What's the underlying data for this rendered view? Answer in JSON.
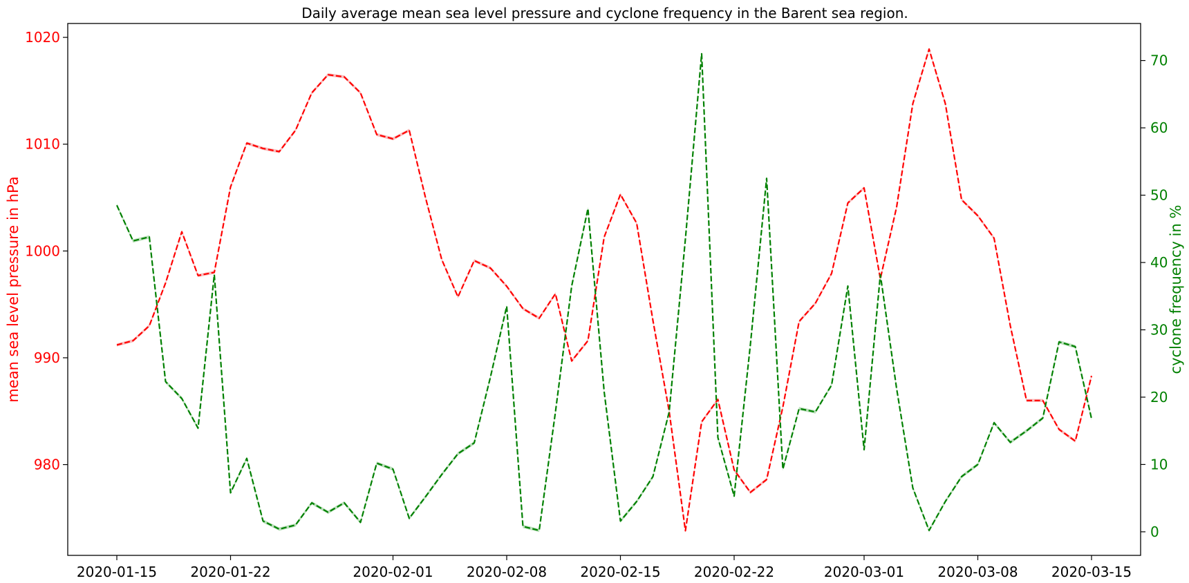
{
  "chart_data": {
    "type": "line",
    "title": "Daily average mean sea level pressure and cyclone frequency in the Barent sea region.",
    "xlabel": "",
    "x_ticks": [
      "2020-01-15",
      "2020-01-22",
      "2020-02-01",
      "2020-02-08",
      "2020-02-15",
      "2020-02-22",
      "2020-03-01",
      "2020-03-08",
      "2020-03-15"
    ],
    "y_left": {
      "label": "mean sea level pressure in hPa",
      "color": "#ff0000",
      "lim": [
        971.5,
        1021.3
      ],
      "ticks": [
        "980",
        "990",
        "1000",
        "1010",
        "1020"
      ]
    },
    "y_right": {
      "label": "cyclone frequency in %",
      "color": "#008000",
      "lim": [
        -3.5,
        75.5
      ],
      "ticks": [
        "0",
        "10",
        "20",
        "30",
        "40",
        "50",
        "60",
        "70"
      ]
    },
    "x_start": "2020-01-15",
    "x_end": "2020-03-15",
    "grid": false,
    "line_style": "dashed",
    "series": [
      {
        "axis": "left",
        "color": "#ff0000",
        "band_color": "#f7a8a8",
        "values": [
          991.2,
          991.6,
          993.0,
          997.0,
          1001.8,
          997.7,
          998.0,
          1006.0,
          1010.1,
          1009.6,
          1009.3,
          1011.3,
          1014.8,
          1016.5,
          1016.3,
          1014.8,
          1010.9,
          1010.5,
          1011.3,
          1005.0,
          999.2,
          995.7,
          999.1,
          998.4,
          996.7,
          994.6,
          993.7,
          996.0,
          989.7,
          991.6,
          1001.3,
          1005.3,
          1002.6,
          993.5,
          985.0,
          973.8,
          984.0,
          986.1,
          979.5,
          977.4,
          978.6,
          985.4,
          993.4,
          995.1,
          997.9,
          1004.5,
          1005.9,
          997.4,
          1004.1,
          1013.8,
          1018.9,
          1013.8,
          1004.8,
          1003.3,
          1001.2,
          993.0,
          986.0,
          986.0,
          983.3,
          982.2,
          988.3
        ]
      },
      {
        "axis": "right",
        "color": "#008000",
        "band_color": "#a5d6a5",
        "values": [
          48.5,
          43.2,
          43.8,
          22.3,
          19.8,
          15.4,
          38.2,
          5.8,
          10.9,
          1.6,
          0.4,
          1.0,
          4.3,
          2.9,
          4.3,
          1.4,
          10.2,
          9.3,
          2.0,
          5.2,
          8.5,
          11.6,
          13.2,
          23.0,
          33.5,
          0.8,
          0.2,
          17.8,
          36.5,
          48.0,
          20.8,
          1.6,
          4.5,
          8.2,
          17.8,
          43.5,
          71.0,
          14.0,
          5.3,
          27.8,
          52.5,
          9.3,
          18.3,
          17.8,
          21.8,
          36.5,
          12.2,
          38.2,
          21.3,
          6.5,
          0.2,
          4.5,
          8.2,
          10.0,
          16.2,
          13.3,
          15.0,
          16.9,
          28.2,
          27.5,
          16.8
        ]
      }
    ]
  }
}
